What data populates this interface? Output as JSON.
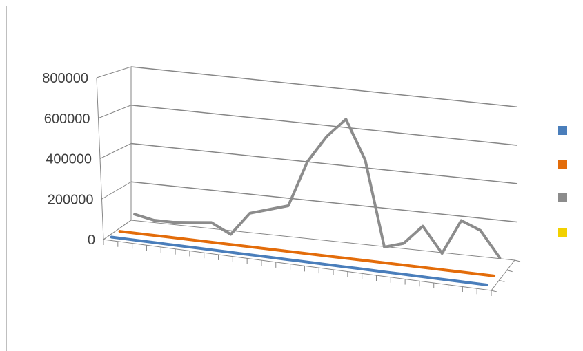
{
  "chart_data": {
    "type": "line",
    "title": "",
    "xlabel": "",
    "ylabel": "",
    "ylim": [
      0,
      800000
    ],
    "y_ticks": [
      {
        "value": 0,
        "label": "0"
      },
      {
        "value": 200000,
        "label": "200000"
      },
      {
        "value": 400000,
        "label": "400000"
      },
      {
        "value": 600000,
        "label": "600000"
      },
      {
        "value": 800000,
        "label": "800000"
      }
    ],
    "grid": true,
    "three_d": true,
    "legend_position": "right",
    "x_count": 27,
    "series": [
      {
        "color": "#4a7ebb",
        "values": [
          0,
          0,
          0,
          0,
          0,
          0,
          0,
          0,
          0,
          0,
          0,
          0,
          0,
          0,
          0,
          0,
          0,
          0,
          0,
          0,
          0,
          0,
          0,
          0,
          0,
          0,
          0
        ]
      },
      {
        "color": "#e36c0a",
        "values": [
          0,
          0,
          0,
          0,
          0,
          0,
          0,
          0,
          0,
          0,
          0,
          0,
          0,
          0,
          0,
          0,
          0,
          0,
          0,
          0,
          0,
          0,
          0,
          0,
          0,
          0,
          0
        ]
      },
      {
        "color": "#8c8c8c",
        "values": [
          50000,
          30000,
          30000,
          40000,
          50000,
          0,
          120000,
          150000,
          180000,
          420000,
          560000,
          660000,
          460000,
          20000,
          50000,
          150000,
          20000,
          200000,
          160000,
          30000
        ]
      },
      {
        "color": "#f2d100",
        "values": []
      }
    ]
  }
}
